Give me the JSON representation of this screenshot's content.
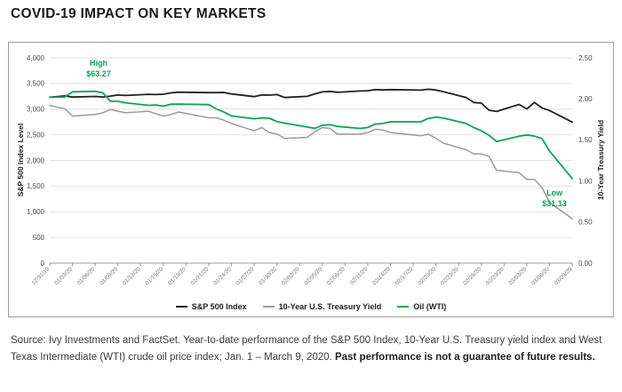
{
  "page": {
    "title": "COVID-19 IMPACT ON KEY MARKETS",
    "source_text": "Source: Ivy Investments and FactSet. Year-to-date performance of the S&P 500 Index, 10-Year U.S. Treasury yield index and West Texas Intermediate (WTI) crude oil price index; Jan. 1 – March 9, 2020. ",
    "source_bold": "Past performance is not a guarantee of future results."
  },
  "chart_data": {
    "type": "line",
    "title": "COVID-19 IMPACT ON KEY MARKETS",
    "ylabel_left": "S&P 500 Index Level",
    "ylabel_right": "10-Year Treasury Yield",
    "ylim_left": [
      0,
      4000
    ],
    "ylim_right": [
      0,
      2.5
    ],
    "grid": "horizontal",
    "legend_position": "bottom-center",
    "yticks_left": [
      "0",
      "500",
      "1,000",
      "1,500",
      "2,000",
      "2,500",
      "3,000",
      "3,500",
      "4,000"
    ],
    "yticks_right": [
      "0.00",
      "0.50",
      "1.00",
      "1.50",
      "2.00",
      "2.50"
    ],
    "xtick_labels": [
      "12/31/19",
      "01/03/20",
      "01/06/20",
      "01/09/20",
      "01/12/20",
      "01/15/20",
      "01/18/20",
      "01/21/20",
      "01/24/20",
      "01/27/20",
      "01/30/20",
      "02/02/20",
      "02/05/20",
      "02/08/20",
      "02/11/20",
      "02/14/20",
      "02/17/20",
      "02/20/20",
      "02/23/20",
      "02/26/20",
      "02/29/20",
      "03/03/20",
      "03/06/20",
      "03/09/20"
    ],
    "xtick_day_step": 3,
    "x_start_date": "12/31/19",
    "x_total_days": 69,
    "annotations": [
      {
        "label": "High",
        "value": "$63.27",
        "series": "Oil (WTI)",
        "date": "01/06/20"
      },
      {
        "label": "Low",
        "value": "$31.13",
        "series": "Oil (WTI)",
        "date": "03/09/20"
      }
    ],
    "legend": [
      {
        "name": "S&P 500 Index",
        "color": "#231f20"
      },
      {
        "name": "10-Year U.S. Treasury Yield",
        "color": "#9b9b9b"
      },
      {
        "name": "Oil (WTI)",
        "color": "#00a94f"
      }
    ],
    "oil_plot_scale_to_left_axis": 52.91,
    "yield_plot_scale_to_left_axis": 1600,
    "dates": [
      "12/31/19",
      "01/02/20",
      "01/03/20",
      "01/06/20",
      "01/07/20",
      "01/08/20",
      "01/09/20",
      "01/10/20",
      "01/13/20",
      "01/14/20",
      "01/15/20",
      "01/16/20",
      "01/17/20",
      "01/21/20",
      "01/22/20",
      "01/23/20",
      "01/24/20",
      "01/27/20",
      "01/28/20",
      "01/29/20",
      "01/30/20",
      "01/31/20",
      "02/03/20",
      "02/04/20",
      "02/05/20",
      "02/06/20",
      "02/07/20",
      "02/10/20",
      "02/11/20",
      "02/12/20",
      "02/13/20",
      "02/14/20",
      "02/18/20",
      "02/19/20",
      "02/20/20",
      "02/21/20",
      "02/24/20",
      "02/25/20",
      "02/26/20",
      "02/27/20",
      "02/28/20",
      "03/02/20",
      "03/03/20",
      "03/04/20",
      "03/05/20",
      "03/06/20",
      "03/09/20"
    ],
    "series": [
      {
        "name": "S&P 500 Index",
        "axis": "left",
        "color": "#231f20",
        "values": [
          3230.78,
          3257.85,
          3234.85,
          3246.28,
          3237.18,
          3253.05,
          3274.7,
          3265.35,
          3288.13,
          3283.15,
          3289.29,
          3316.81,
          3329.62,
          3320.79,
          3321.75,
          3325.54,
          3295.47,
          3243.63,
          3276.24,
          3273.4,
          3283.66,
          3225.52,
          3248.92,
          3297.59,
          3334.69,
          3345.78,
          3327.71,
          3352.09,
          3357.75,
          3379.45,
          3373.94,
          3380.16,
          3370.29,
          3386.15,
          3373.23,
          3337.75,
          3225.89,
          3128.21,
          3116.39,
          2978.76,
          2954.22,
          3090.23,
          3003.37,
          3130.12,
          3023.94,
          2972.37,
          2746.56
        ]
      },
      {
        "name": "10-Year U.S. Treasury Yield",
        "axis": "right",
        "color": "#9b9b9b",
        "values": [
          1.92,
          1.88,
          1.79,
          1.81,
          1.83,
          1.87,
          1.85,
          1.83,
          1.85,
          1.82,
          1.79,
          1.81,
          1.84,
          1.77,
          1.77,
          1.74,
          1.7,
          1.61,
          1.65,
          1.59,
          1.57,
          1.52,
          1.53,
          1.6,
          1.65,
          1.64,
          1.57,
          1.57,
          1.59,
          1.63,
          1.62,
          1.59,
          1.55,
          1.57,
          1.52,
          1.46,
          1.38,
          1.33,
          1.33,
          1.3,
          1.13,
          1.1,
          1.02,
          1.02,
          0.92,
          0.74,
          0.54
        ]
      },
      {
        "name": "Oil (WTI)",
        "axis": "oil",
        "color": "#00a94f",
        "values": [
          61.06,
          61.18,
          63.05,
          63.27,
          62.7,
          59.61,
          59.56,
          59.04,
          58.08,
          58.23,
          57.81,
          58.52,
          58.54,
          58.34,
          56.74,
          55.59,
          54.19,
          53.14,
          53.48,
          53.33,
          52.14,
          51.56,
          50.11,
          49.61,
          50.75,
          50.95,
          50.32,
          49.57,
          49.94,
          51.17,
          51.42,
          52.05,
          52.05,
          53.29,
          53.78,
          53.38,
          51.43,
          49.9,
          48.73,
          47.09,
          44.76,
          46.75,
          47.18,
          46.78,
          45.9,
          41.28,
          31.13
        ]
      }
    ]
  }
}
